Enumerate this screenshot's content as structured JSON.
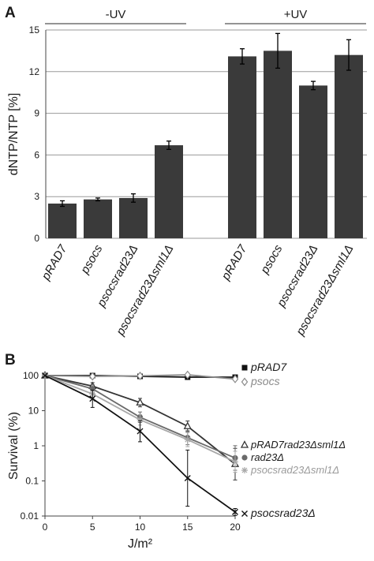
{
  "chart_data": [
    {
      "panel": "A",
      "type": "bar",
      "ylabel": "dNTP/NTP [%]",
      "ylim": [
        0,
        15
      ],
      "yticks": [
        0,
        3,
        6,
        9,
        12,
        15
      ],
      "grid": true,
      "groups": [
        {
          "label": "-UV",
          "categories": [
            "pRAD7",
            "psocs",
            "psocsrad23Δ",
            "psocsrad23Δsml1Δ"
          ],
          "values": [
            2.5,
            2.8,
            2.9,
            6.7
          ],
          "errors": [
            0.2,
            0.1,
            0.3,
            0.3
          ]
        },
        {
          "label": "+UV",
          "categories": [
            "pRAD7",
            "psocs",
            "psocsrad23Δ",
            "psocsrad23Δsml1Δ"
          ],
          "values": [
            13.1,
            13.5,
            11.0,
            13.2
          ],
          "errors": [
            0.55,
            1.25,
            0.3,
            1.1
          ]
        }
      ],
      "colors": {
        "bar": "#3a3a3a"
      }
    },
    {
      "panel": "B",
      "type": "line",
      "xlabel": "J/m²",
      "ylabel": "Survival (%)",
      "yscale": "log",
      "ylim": [
        0.01,
        100
      ],
      "yticks": [
        0.01,
        0.1,
        1,
        10,
        100
      ],
      "ytick_labels": [
        "0.01",
        "0.1",
        "1",
        "10",
        "100"
      ],
      "xlim": [
        0,
        20
      ],
      "xticks": [
        0,
        5,
        10,
        15,
        20
      ],
      "series": [
        {
          "name": "pRAD7",
          "marker": "square",
          "color": "#111111",
          "x": [
            0,
            5,
            10,
            15,
            20
          ],
          "y": [
            100,
            100,
            95,
            90,
            90
          ],
          "err": [
            0.05,
            0.05,
            0.06,
            0.06,
            0.06
          ]
        },
        {
          "name": "psocs",
          "marker": "diamond",
          "color": "#8a8a8a",
          "x": [
            0,
            5,
            10,
            15,
            20
          ],
          "y": [
            100,
            95,
            98,
            105,
            80
          ],
          "err": [
            0.05,
            0.05,
            0.05,
            0.06,
            0.06
          ]
        },
        {
          "name": "pRAD7rad23Δsml1Δ",
          "marker": "triangle",
          "color": "#333333",
          "x": [
            0,
            5,
            10,
            15,
            20
          ],
          "y": [
            100,
            50,
            17,
            3.6,
            0.3
          ],
          "err": [
            0.05,
            0.1,
            0.12,
            0.15,
            0.45
          ]
        },
        {
          "name": "rad23Δ",
          "marker": "circle",
          "color": "#6a6a6a",
          "x": [
            0,
            5,
            10,
            15,
            20
          ],
          "y": [
            100,
            42,
            6.5,
            1.7,
            0.45
          ],
          "err": [
            0.05,
            0.12,
            0.15,
            0.2,
            0.35
          ]
        },
        {
          "name": "psocsrad23Δsml1Δ",
          "marker": "star",
          "color": "#a8a8a8",
          "x": [
            0,
            5,
            10,
            15,
            20
          ],
          "y": [
            100,
            30,
            5.5,
            1.5,
            0.35
          ],
          "err": [
            0.05,
            0.12,
            0.15,
            0.2,
            0.3
          ]
        },
        {
          "name": "psocsrad23Δ",
          "marker": "x",
          "color": "#111111",
          "x": [
            0,
            5,
            10,
            15,
            20
          ],
          "y": [
            100,
            22,
            2.6,
            0.12,
            0.013
          ],
          "err": [
            0.05,
            0.25,
            0.3,
            0.8,
            0.1
          ]
        }
      ]
    }
  ]
}
